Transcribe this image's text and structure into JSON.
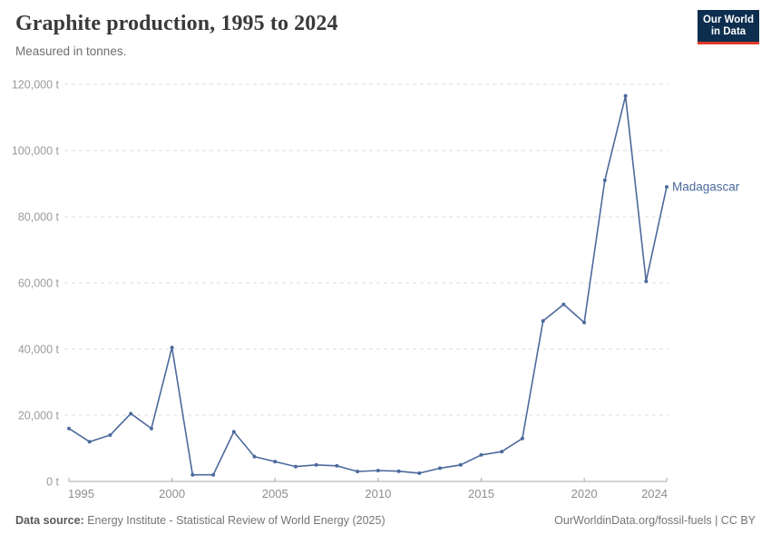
{
  "header": {
    "title": "Graphite production, 1995 to 2024",
    "subtitle": "Measured in tonnes."
  },
  "logo": {
    "line1": "Our World",
    "line2": "in Data",
    "bg_color": "#0d2e4f",
    "accent_color": "#e0392a"
  },
  "chart_data": {
    "type": "line",
    "title": "Graphite production, 1995 to 2024",
    "ylabel": "tonnes",
    "xlabel": "",
    "unit": "t",
    "grid": "horizontal-dashed",
    "legend_position": "end-of-line",
    "xlim": [
      1995,
      2024
    ],
    "ylim": [
      0,
      120000
    ],
    "x": [
      1995,
      1996,
      1997,
      1998,
      1999,
      2000,
      2001,
      2002,
      2003,
      2004,
      2005,
      2006,
      2007,
      2008,
      2009,
      2010,
      2011,
      2012,
      2013,
      2014,
      2015,
      2016,
      2017,
      2018,
      2019,
      2020,
      2021,
      2022,
      2023,
      2024
    ],
    "series": [
      {
        "name": "Madagascar",
        "color": "#4C6A9C",
        "values": [
          16000,
          12000,
          14000,
          20500,
          16000,
          40500,
          2000,
          2000,
          15000,
          7500,
          6000,
          4500,
          5000,
          4700,
          3000,
          3300,
          3100,
          2500,
          4000,
          5000,
          8000,
          9000,
          13000,
          48500,
          53500,
          48000,
          91000,
          116500,
          60500,
          89000
        ]
      }
    ],
    "x_ticks": [
      1995,
      2000,
      2005,
      2010,
      2015,
      2020,
      2024
    ],
    "x_tick_labels": [
      "1995",
      "2000",
      "2005",
      "2010",
      "2015",
      "2020",
      "2024"
    ],
    "y_ticks": [
      0,
      20000,
      40000,
      60000,
      80000,
      100000,
      120000
    ],
    "y_tick_labels": [
      "0 t",
      "20,000 t",
      "40,000 t",
      "60,000 t",
      "80,000 t",
      "100,000 t",
      "120,000 t"
    ]
  },
  "footer": {
    "source_label": "Data source:",
    "source_text": "Energy Institute - Statistical Review of World Energy (2025)",
    "right_text": "OurWorldinData.org/fossil-fuels | CC BY"
  }
}
